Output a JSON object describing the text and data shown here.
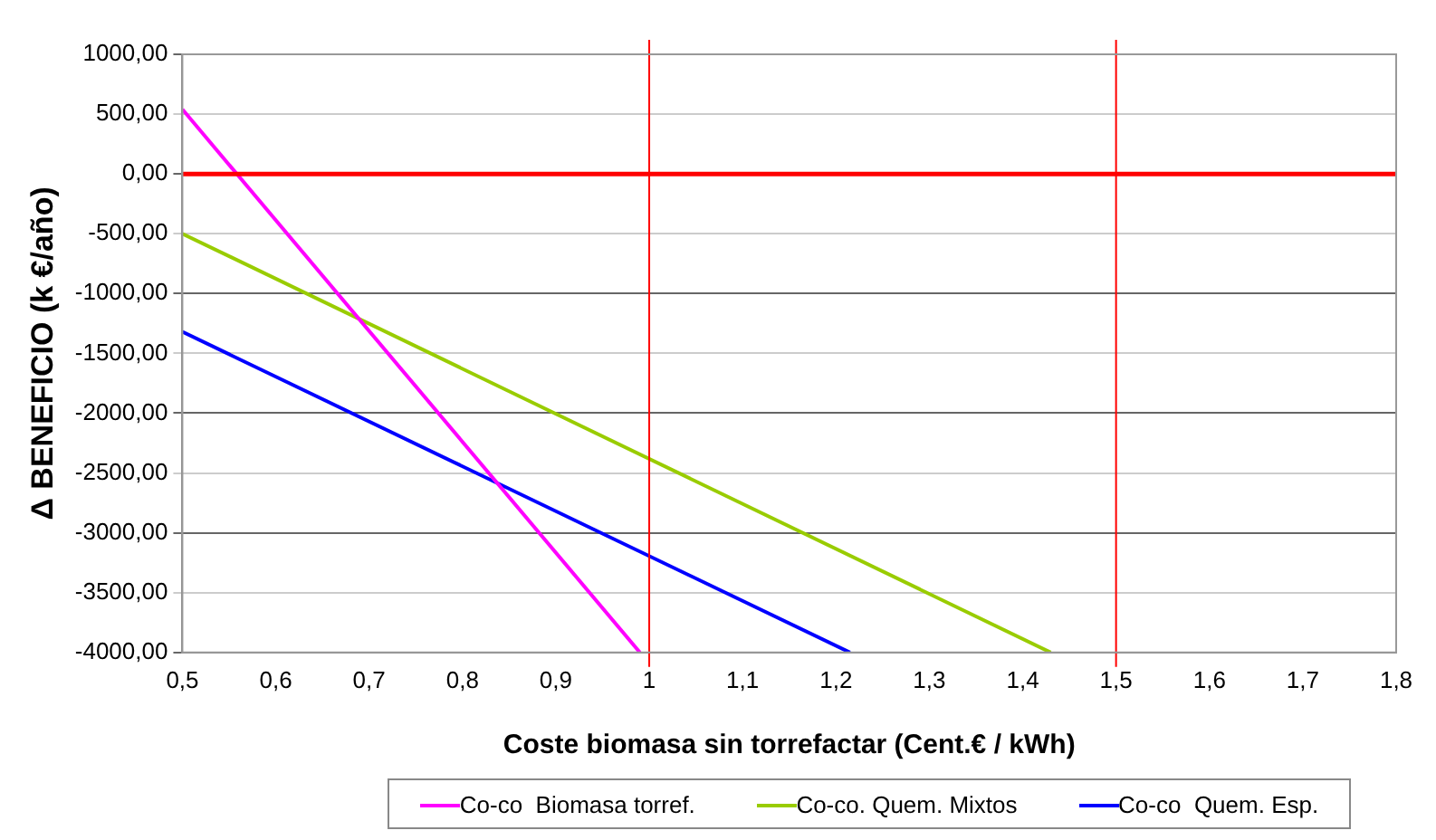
{
  "chart_data": {
    "type": "line",
    "xlabel": "Coste biomasa sin torrefactar (Cent.€ / kWh)",
    "ylabel": "Δ BENEFICIO (k €/año)",
    "series": [
      {
        "name": "Co-co  Biomasa torref.",
        "color": "#ff00ff",
        "x": [
          0.5,
          0.99
        ],
        "values": [
          540,
          -4000
        ]
      },
      {
        "name": "Co-co. Quem. Mixtos",
        "color": "#99cc00",
        "x": [
          0.5,
          1.43
        ],
        "values": [
          -500,
          -4000
        ]
      },
      {
        "name": "Co-co  Quem. Esp.",
        "color": "#0000ff",
        "x": [
          0.5,
          1.215
        ],
        "values": [
          -1320,
          -4000
        ]
      }
    ],
    "xlim": [
      0.5,
      1.8
    ],
    "xticks": [
      {
        "value": 0.5,
        "label": "0,5"
      },
      {
        "value": 0.6,
        "label": "0,6"
      },
      {
        "value": 0.7,
        "label": "0,7"
      },
      {
        "value": 0.8,
        "label": "0,8"
      },
      {
        "value": 0.9,
        "label": "0,9"
      },
      1,
      {
        "value": 1.1,
        "label": "1,1"
      },
      {
        "value": 1.2,
        "label": "1,2"
      },
      {
        "value": 1.3,
        "label": "1,3"
      },
      {
        "value": 1.4,
        "label": "1,4"
      },
      {
        "value": 1.5,
        "label": "1,5"
      },
      {
        "value": 1.6,
        "label": "1,6"
      },
      {
        "value": 1.7,
        "label": "1,7"
      },
      {
        "value": 1.8,
        "label": "1,8"
      }
    ],
    "ylim": [
      -4000,
      1000
    ],
    "yticks": [
      {
        "value": -4000,
        "label": "-4000,00"
      },
      {
        "value": -3500,
        "label": "-3500,00"
      },
      {
        "value": -3000,
        "label": "-3000,00"
      },
      {
        "value": -2500,
        "label": "-2500,00"
      },
      {
        "value": -2000,
        "label": "-2000,00"
      },
      {
        "value": -1500,
        "label": "-1500,00"
      },
      {
        "value": -1000,
        "label": "-1000,00"
      },
      {
        "value": -500,
        "label": "-500,00"
      },
      {
        "value": 0,
        "label": "0,00"
      },
      {
        "value": 500,
        "label": "500,00"
      },
      {
        "value": 1000,
        "label": "1000,00"
      }
    ],
    "ref_lines": [
      {
        "axis": "y",
        "value": 0,
        "color": "#ff0000"
      },
      {
        "axis": "x",
        "value": 1,
        "color": "#ff0000"
      },
      {
        "axis": "x",
        "value": 1.5,
        "color": "#ff0000"
      }
    ],
    "grid": "y",
    "legend": "bottom",
    "marker": "none",
    "line_style": "solid"
  }
}
